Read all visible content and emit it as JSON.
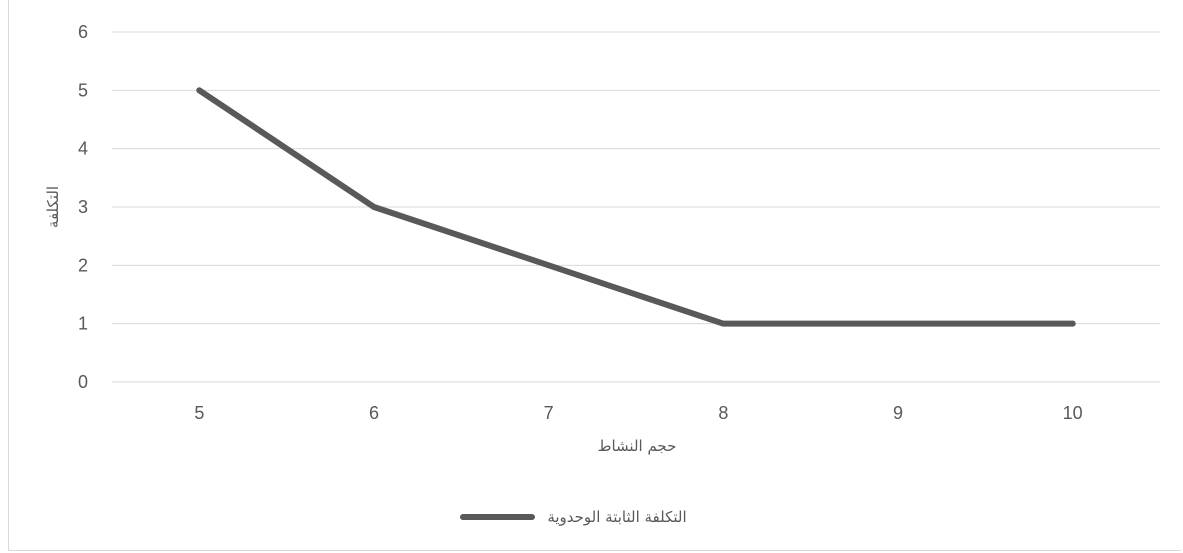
{
  "chart_data": {
    "type": "line",
    "title": "",
    "xlabel": "حجم النشاط",
    "ylabel": "التكلفة",
    "categories": [
      "5",
      "6",
      "7",
      "8",
      "9",
      "10"
    ],
    "x": [
      5,
      6,
      7,
      8,
      10
    ],
    "series": [
      {
        "name": "التكلفة الثابتة الوحدوية",
        "values": [
          5,
          3,
          2,
          1,
          1
        ]
      }
    ],
    "ylim": [
      0,
      6
    ],
    "yticks": [
      "0",
      "1",
      "2",
      "3",
      "4",
      "5",
      "6"
    ],
    "grid": "horizontal",
    "legend": "bottom",
    "colors": {
      "line": "#595959",
      "grid": "#d9d9d9",
      "text": "#595959"
    }
  }
}
